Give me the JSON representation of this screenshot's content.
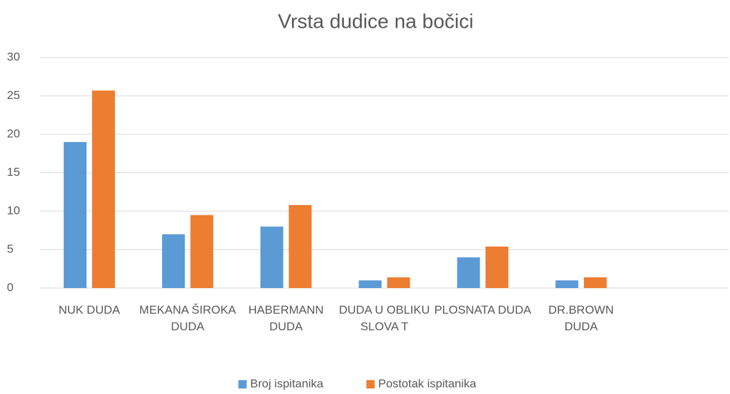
{
  "chart_data": {
    "type": "bar",
    "title": "Vrsta dudice na bočici",
    "categories": [
      "NUK DUDA",
      "MEKANA ŠIROKA DUDA",
      "HABERMANN DUDA",
      "DUDA U OBLIKU SLOVA T",
      "PLOSNATA DUDA",
      "DR.BROWN DUDA",
      null
    ],
    "series": [
      {
        "name": "Broj ispitanika",
        "color": "#5b9bd5",
        "values": [
          19,
          7,
          8,
          1,
          4,
          1,
          null
        ]
      },
      {
        "name": "Postotak ispitanika",
        "color": "#ed7d31",
        "values": [
          25.7,
          9.5,
          10.8,
          1.4,
          5.4,
          1.4,
          null
        ]
      }
    ],
    "ylim": [
      0,
      30
    ],
    "yticks": [
      0,
      5,
      10,
      15,
      20,
      25,
      30
    ],
    "grid": true,
    "legend": "bottom"
  }
}
